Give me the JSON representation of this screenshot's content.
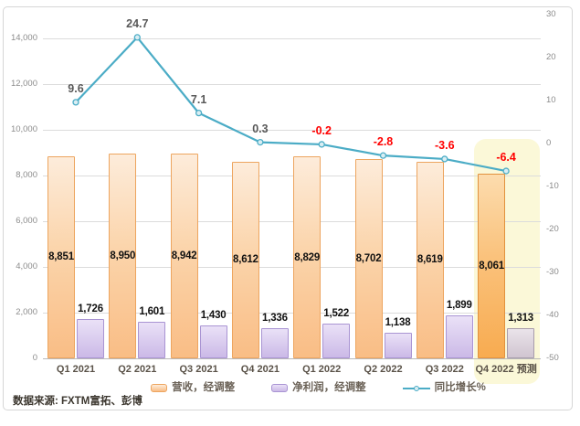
{
  "chart_data": {
    "type": "combo-bar-line",
    "title": "",
    "categories": [
      "Q1 2021",
      "Q2 2021",
      "Q3 2021",
      "Q4 2021",
      "Q1 2022",
      "Q2 2022",
      "Q3 2022",
      "Q4 2022 预测"
    ],
    "series": [
      {
        "name": "营收，经调整",
        "type": "bar",
        "axis": "left",
        "values": [
          8851,
          8950,
          8942,
          8612,
          8829,
          8702,
          8619,
          8061
        ],
        "labels": [
          "8,851",
          "8,950",
          "8,942",
          "8,612",
          "8,829",
          "8,702",
          "8,619",
          "8,061"
        ]
      },
      {
        "name": "净利润，经调整",
        "type": "bar",
        "axis": "left",
        "values": [
          1726,
          1601,
          1430,
          1336,
          1522,
          1138,
          1899,
          1313
        ],
        "labels": [
          "1,726",
          "1,601",
          "1,430",
          "1,336",
          "1,522",
          "1,138",
          "1,899",
          "1,313"
        ]
      },
      {
        "name": "同比增长%",
        "type": "line",
        "axis": "right",
        "values": [
          9.6,
          24.7,
          7.1,
          0.3,
          -0.2,
          -2.8,
          -3.6,
          -6.4
        ],
        "labels": [
          "9.6",
          "24.7",
          "7.1",
          "0.3",
          "-0.2",
          "-2.8",
          "-3.6",
          "-6.4"
        ]
      }
    ],
    "left_axis": {
      "min": 0,
      "max": 14000,
      "ticks": [
        "0",
        "2,000",
        "4,000",
        "6,000",
        "8,000",
        "10,000",
        "12,000",
        "14,000"
      ]
    },
    "right_axis": {
      "min": -50,
      "max": 30,
      "ticks": [
        "30",
        "20",
        "10",
        "0",
        "-10",
        "-20",
        "-30",
        "-40",
        "-50"
      ]
    },
    "grid": true,
    "legend_position": "bottom",
    "forecast_index": 7,
    "source": "数据来源: FXTM富拓、彭博",
    "colors": {
      "revenue_fill_top": "#fdecdb",
      "revenue_fill_bottom": "#f9bd85",
      "revenue_border": "#eda55f",
      "revenue_fc_top": "#fcdcae",
      "revenue_fc_bottom": "#f8ab50",
      "revenue_fc_border": "#e2923d",
      "profit_fill_top": "#eae1f7",
      "profit_fill_bottom": "#cbb9e7",
      "profit_border": "#a994d3",
      "profit_fc_top": "#eae4ea",
      "profit_fc_bottom": "#d0c5d0",
      "profit_fc_border": "#a89cab",
      "line": "#4bacc6",
      "marker_fill": "#daeef3",
      "negative_label": "#ff0000",
      "label": "#595959",
      "value_label": "#111111",
      "grid": "#dcdcdc",
      "axis_line": "#b9b9b9",
      "tick": "#8c8c8c",
      "highlight": "#fbf8d8",
      "frame_border": "#d6d6d6",
      "source_text": "#3c372f"
    }
  }
}
